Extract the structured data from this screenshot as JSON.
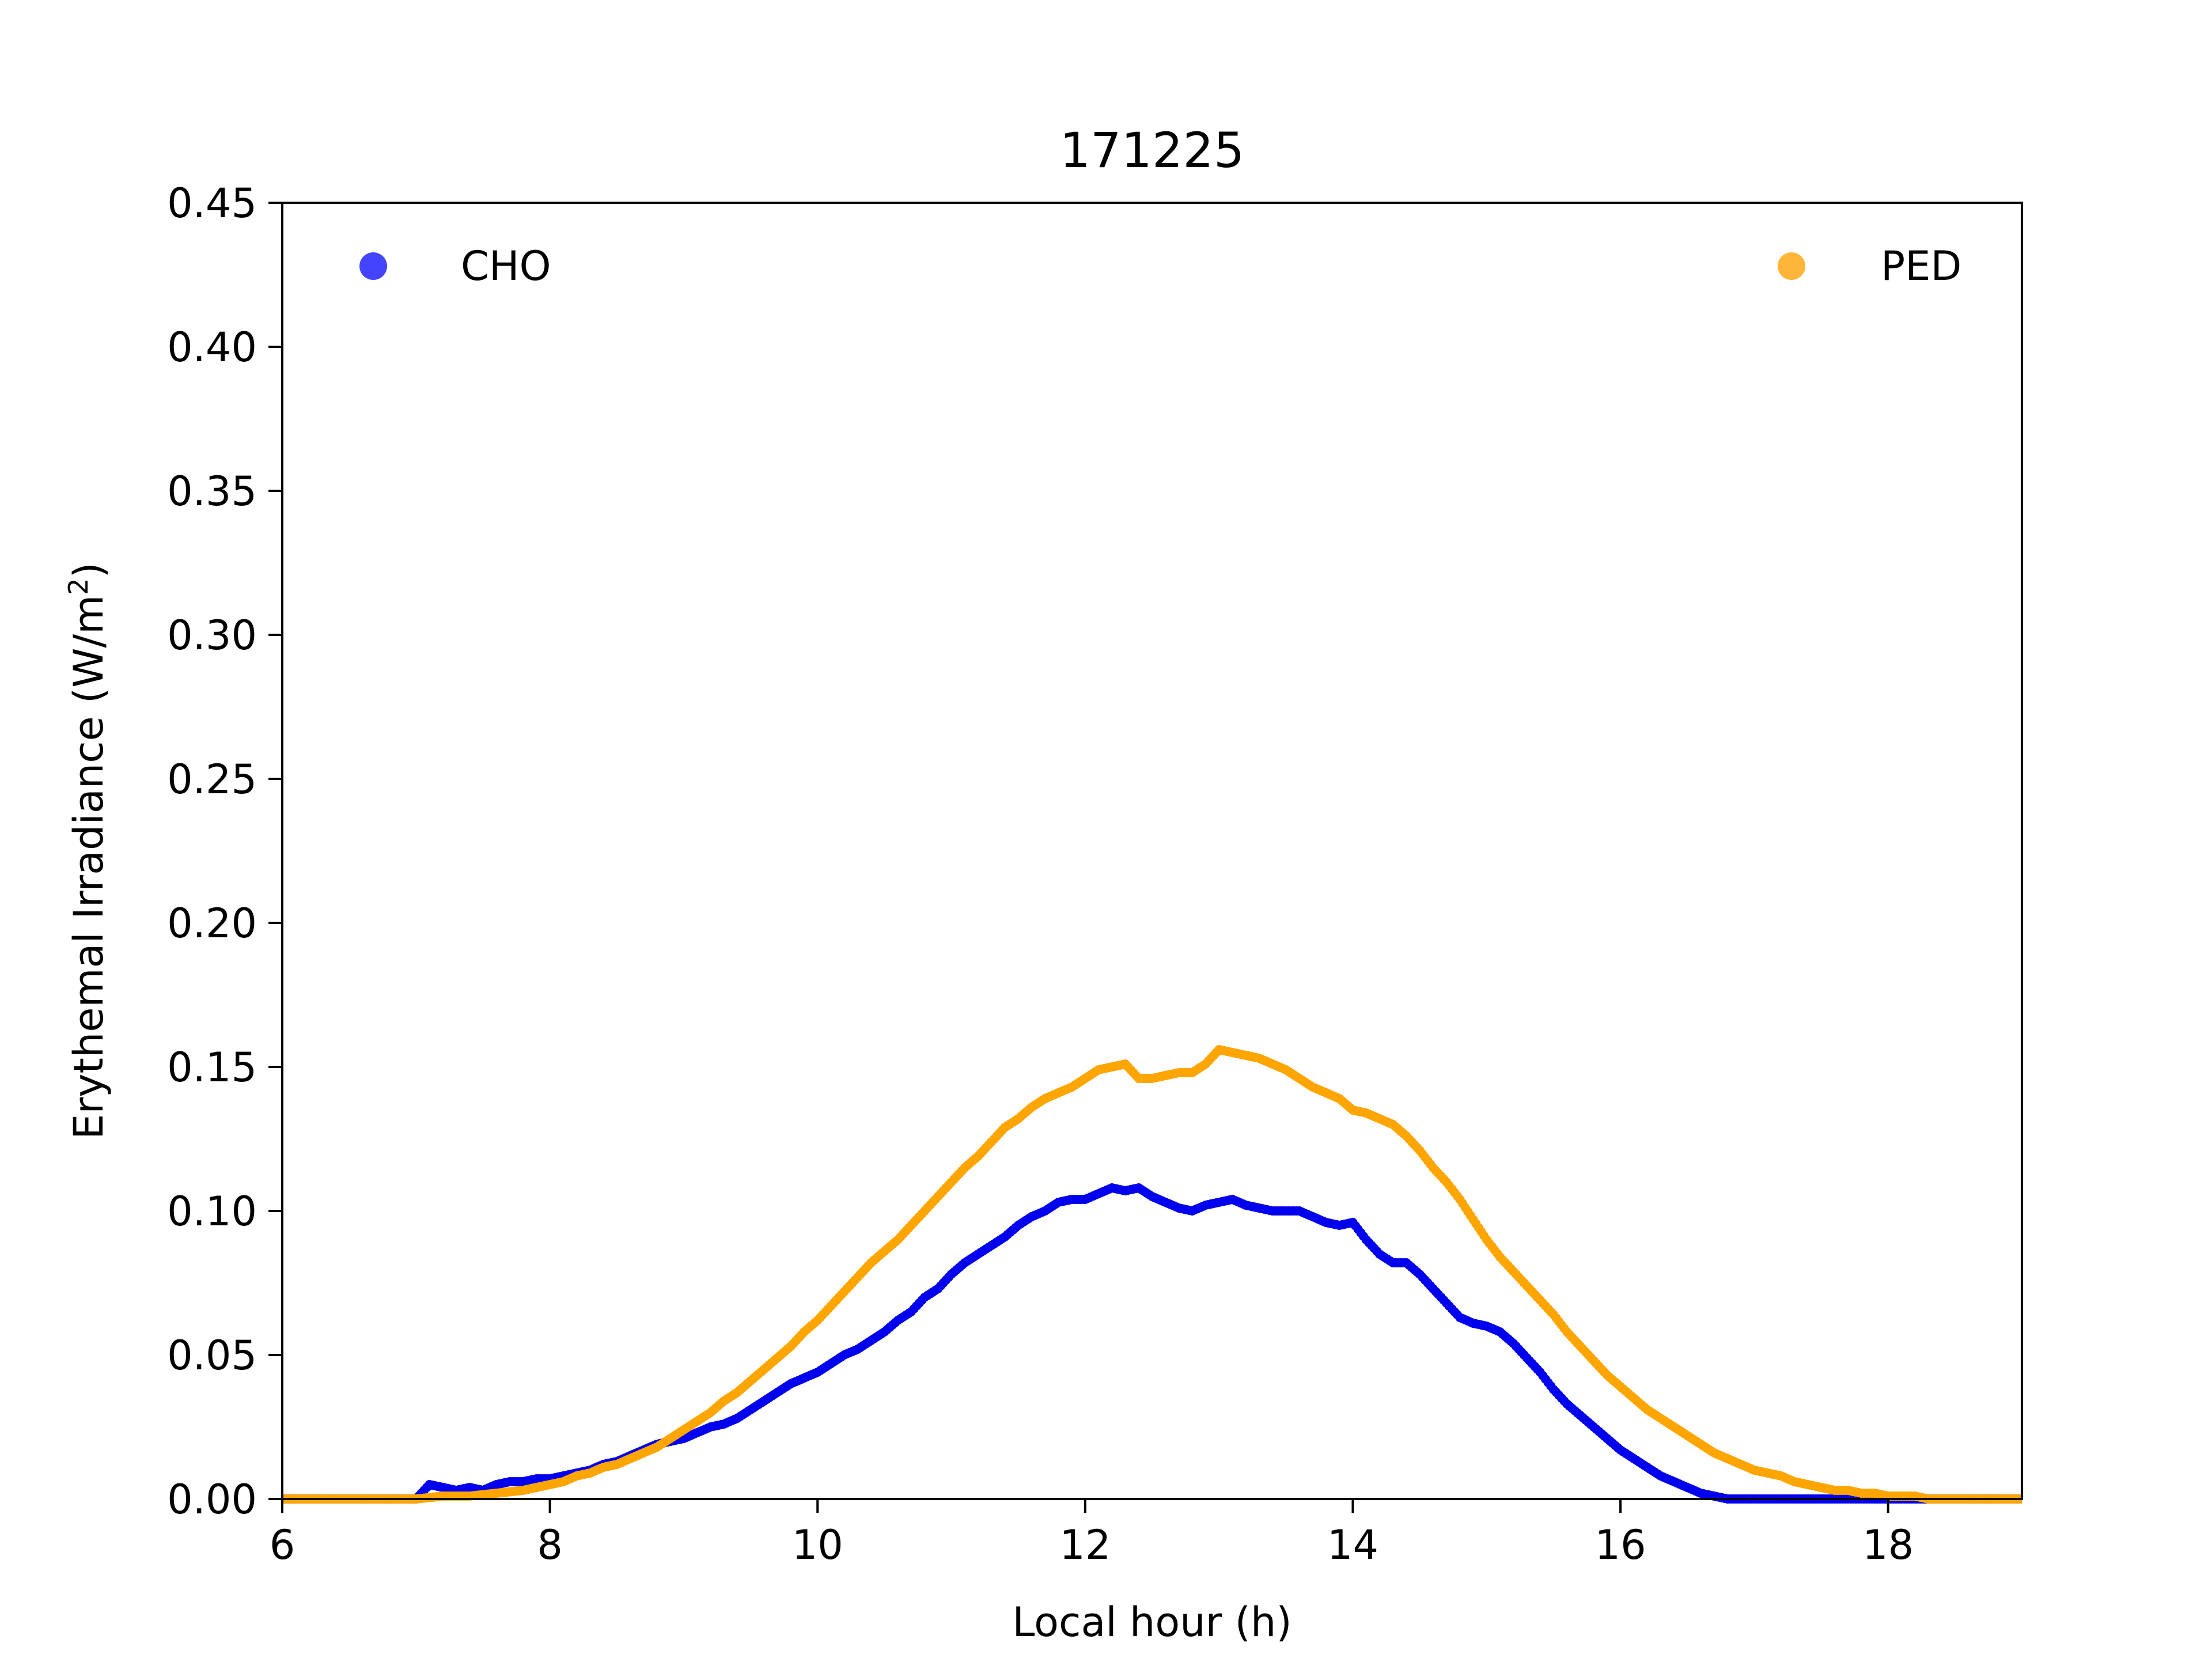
{
  "chart_data": {
    "type": "scatter",
    "title": "171225",
    "xlabel": "Local hour (h)",
    "ylabel_main": "Erythemal Irradiance (W/m",
    "ylabel_sup": "2",
    "ylabel_close": ")",
    "xlim": [
      6,
      19
    ],
    "ylim": [
      0,
      0.45
    ],
    "xticks": [
      6,
      8,
      10,
      12,
      14,
      16,
      18
    ],
    "xtick_labels": [
      "6",
      "8",
      "10",
      "12",
      "14",
      "16",
      "18"
    ],
    "yticks": [
      0,
      0.05,
      0.1,
      0.15,
      0.2,
      0.25,
      0.3,
      0.35,
      0.4,
      0.45
    ],
    "ytick_labels": [
      "0.00",
      "0.05",
      "0.10",
      "0.15",
      "0.20",
      "0.25",
      "0.30",
      "0.35",
      "0.40",
      "0.45"
    ],
    "grid": false,
    "legend": [
      {
        "name": "CHO",
        "placement": "upper-left"
      },
      {
        "name": "PED",
        "placement": "upper-right"
      }
    ],
    "series": [
      {
        "name": "CHO",
        "color": "#0000ee",
        "legend_color": "#4444ff",
        "x": [
          6.0,
          6.5,
          7.0,
          7.1,
          7.2,
          7.3,
          7.4,
          7.5,
          7.6,
          7.7,
          7.8,
          7.9,
          8.0,
          8.1,
          8.2,
          8.3,
          8.4,
          8.5,
          8.6,
          8.7,
          8.8,
          8.9,
          9.0,
          9.1,
          9.2,
          9.3,
          9.4,
          9.5,
          9.6,
          9.7,
          9.8,
          9.9,
          10.0,
          10.1,
          10.2,
          10.3,
          10.4,
          10.5,
          10.6,
          10.7,
          10.8,
          10.9,
          11.0,
          11.1,
          11.2,
          11.3,
          11.4,
          11.5,
          11.6,
          11.7,
          11.8,
          11.9,
          12.0,
          12.1,
          12.2,
          12.3,
          12.4,
          12.5,
          12.6,
          12.7,
          12.8,
          12.9,
          13.0,
          13.1,
          13.2,
          13.3,
          13.4,
          13.5,
          13.6,
          13.7,
          13.8,
          13.9,
          14.0,
          14.1,
          14.2,
          14.3,
          14.4,
          14.5,
          14.6,
          14.7,
          14.8,
          14.9,
          15.0,
          15.1,
          15.2,
          15.3,
          15.4,
          15.5,
          15.6,
          15.7,
          15.8,
          15.9,
          16.0,
          16.1,
          16.2,
          16.3,
          16.4,
          16.5,
          16.6,
          16.7,
          16.8,
          17.0,
          17.5,
          18.0,
          18.5,
          19.0
        ],
        "y": [
          0.0,
          0.0,
          0.0,
          0.005,
          0.004,
          0.003,
          0.004,
          0.003,
          0.005,
          0.006,
          0.006,
          0.007,
          0.007,
          0.008,
          0.009,
          0.01,
          0.012,
          0.013,
          0.015,
          0.017,
          0.019,
          0.02,
          0.021,
          0.023,
          0.025,
          0.026,
          0.028,
          0.031,
          0.034,
          0.037,
          0.04,
          0.042,
          0.044,
          0.047,
          0.05,
          0.052,
          0.055,
          0.058,
          0.062,
          0.065,
          0.07,
          0.073,
          0.078,
          0.082,
          0.085,
          0.088,
          0.091,
          0.095,
          0.098,
          0.1,
          0.103,
          0.104,
          0.104,
          0.106,
          0.108,
          0.107,
          0.108,
          0.105,
          0.103,
          0.101,
          0.1,
          0.102,
          0.103,
          0.104,
          0.102,
          0.101,
          0.1,
          0.1,
          0.1,
          0.098,
          0.096,
          0.095,
          0.096,
          0.09,
          0.085,
          0.082,
          0.082,
          0.078,
          0.073,
          0.068,
          0.063,
          0.061,
          0.06,
          0.058,
          0.054,
          0.049,
          0.044,
          0.038,
          0.033,
          0.029,
          0.025,
          0.021,
          0.017,
          0.014,
          0.011,
          0.008,
          0.006,
          0.004,
          0.002,
          0.001,
          0.0,
          0.0,
          0.0,
          0.0,
          0.0,
          0.0
        ]
      },
      {
        "name": "PED",
        "color": "#ffa500",
        "legend_color": "#ffb43a",
        "x": [
          6.0,
          6.5,
          7.0,
          7.2,
          7.4,
          7.6,
          7.8,
          8.0,
          8.1,
          8.2,
          8.3,
          8.4,
          8.5,
          8.6,
          8.7,
          8.8,
          8.9,
          9.0,
          9.1,
          9.2,
          9.3,
          9.4,
          9.5,
          9.6,
          9.7,
          9.8,
          9.9,
          10.0,
          10.1,
          10.2,
          10.3,
          10.4,
          10.5,
          10.6,
          10.7,
          10.8,
          10.9,
          11.0,
          11.1,
          11.2,
          11.3,
          11.4,
          11.5,
          11.6,
          11.7,
          11.8,
          11.9,
          12.0,
          12.1,
          12.2,
          12.3,
          12.4,
          12.5,
          12.6,
          12.7,
          12.8,
          12.9,
          13.0,
          13.1,
          13.2,
          13.3,
          13.4,
          13.5,
          13.6,
          13.7,
          13.8,
          13.9,
          14.0,
          14.1,
          14.2,
          14.3,
          14.4,
          14.5,
          14.6,
          14.7,
          14.8,
          14.9,
          15.0,
          15.1,
          15.2,
          15.3,
          15.4,
          15.5,
          15.6,
          15.7,
          15.8,
          15.9,
          16.0,
          16.1,
          16.2,
          16.3,
          16.4,
          16.5,
          16.6,
          16.7,
          16.8,
          16.9,
          17.0,
          17.1,
          17.2,
          17.3,
          17.4,
          17.5,
          17.6,
          17.7,
          17.8,
          17.9,
          18.0,
          18.1,
          18.2,
          18.3,
          18.5,
          19.0
        ],
        "y": [
          0.0,
          0.0,
          0.0,
          0.001,
          0.001,
          0.002,
          0.003,
          0.005,
          0.006,
          0.008,
          0.009,
          0.011,
          0.012,
          0.014,
          0.016,
          0.018,
          0.021,
          0.024,
          0.027,
          0.03,
          0.034,
          0.037,
          0.041,
          0.045,
          0.049,
          0.053,
          0.058,
          0.062,
          0.067,
          0.072,
          0.077,
          0.082,
          0.086,
          0.09,
          0.095,
          0.1,
          0.105,
          0.11,
          0.115,
          0.119,
          0.124,
          0.129,
          0.132,
          0.136,
          0.139,
          0.141,
          0.143,
          0.146,
          0.149,
          0.15,
          0.151,
          0.146,
          0.146,
          0.147,
          0.148,
          0.148,
          0.151,
          0.156,
          0.155,
          0.154,
          0.153,
          0.151,
          0.149,
          0.146,
          0.143,
          0.141,
          0.139,
          0.135,
          0.134,
          0.132,
          0.13,
          0.126,
          0.121,
          0.115,
          0.11,
          0.104,
          0.097,
          0.09,
          0.084,
          0.079,
          0.074,
          0.069,
          0.064,
          0.058,
          0.053,
          0.048,
          0.043,
          0.039,
          0.035,
          0.031,
          0.028,
          0.025,
          0.022,
          0.019,
          0.016,
          0.014,
          0.012,
          0.01,
          0.009,
          0.008,
          0.006,
          0.005,
          0.004,
          0.003,
          0.003,
          0.002,
          0.002,
          0.001,
          0.001,
          0.001,
          0.0,
          0.0,
          0.0
        ]
      }
    ]
  }
}
